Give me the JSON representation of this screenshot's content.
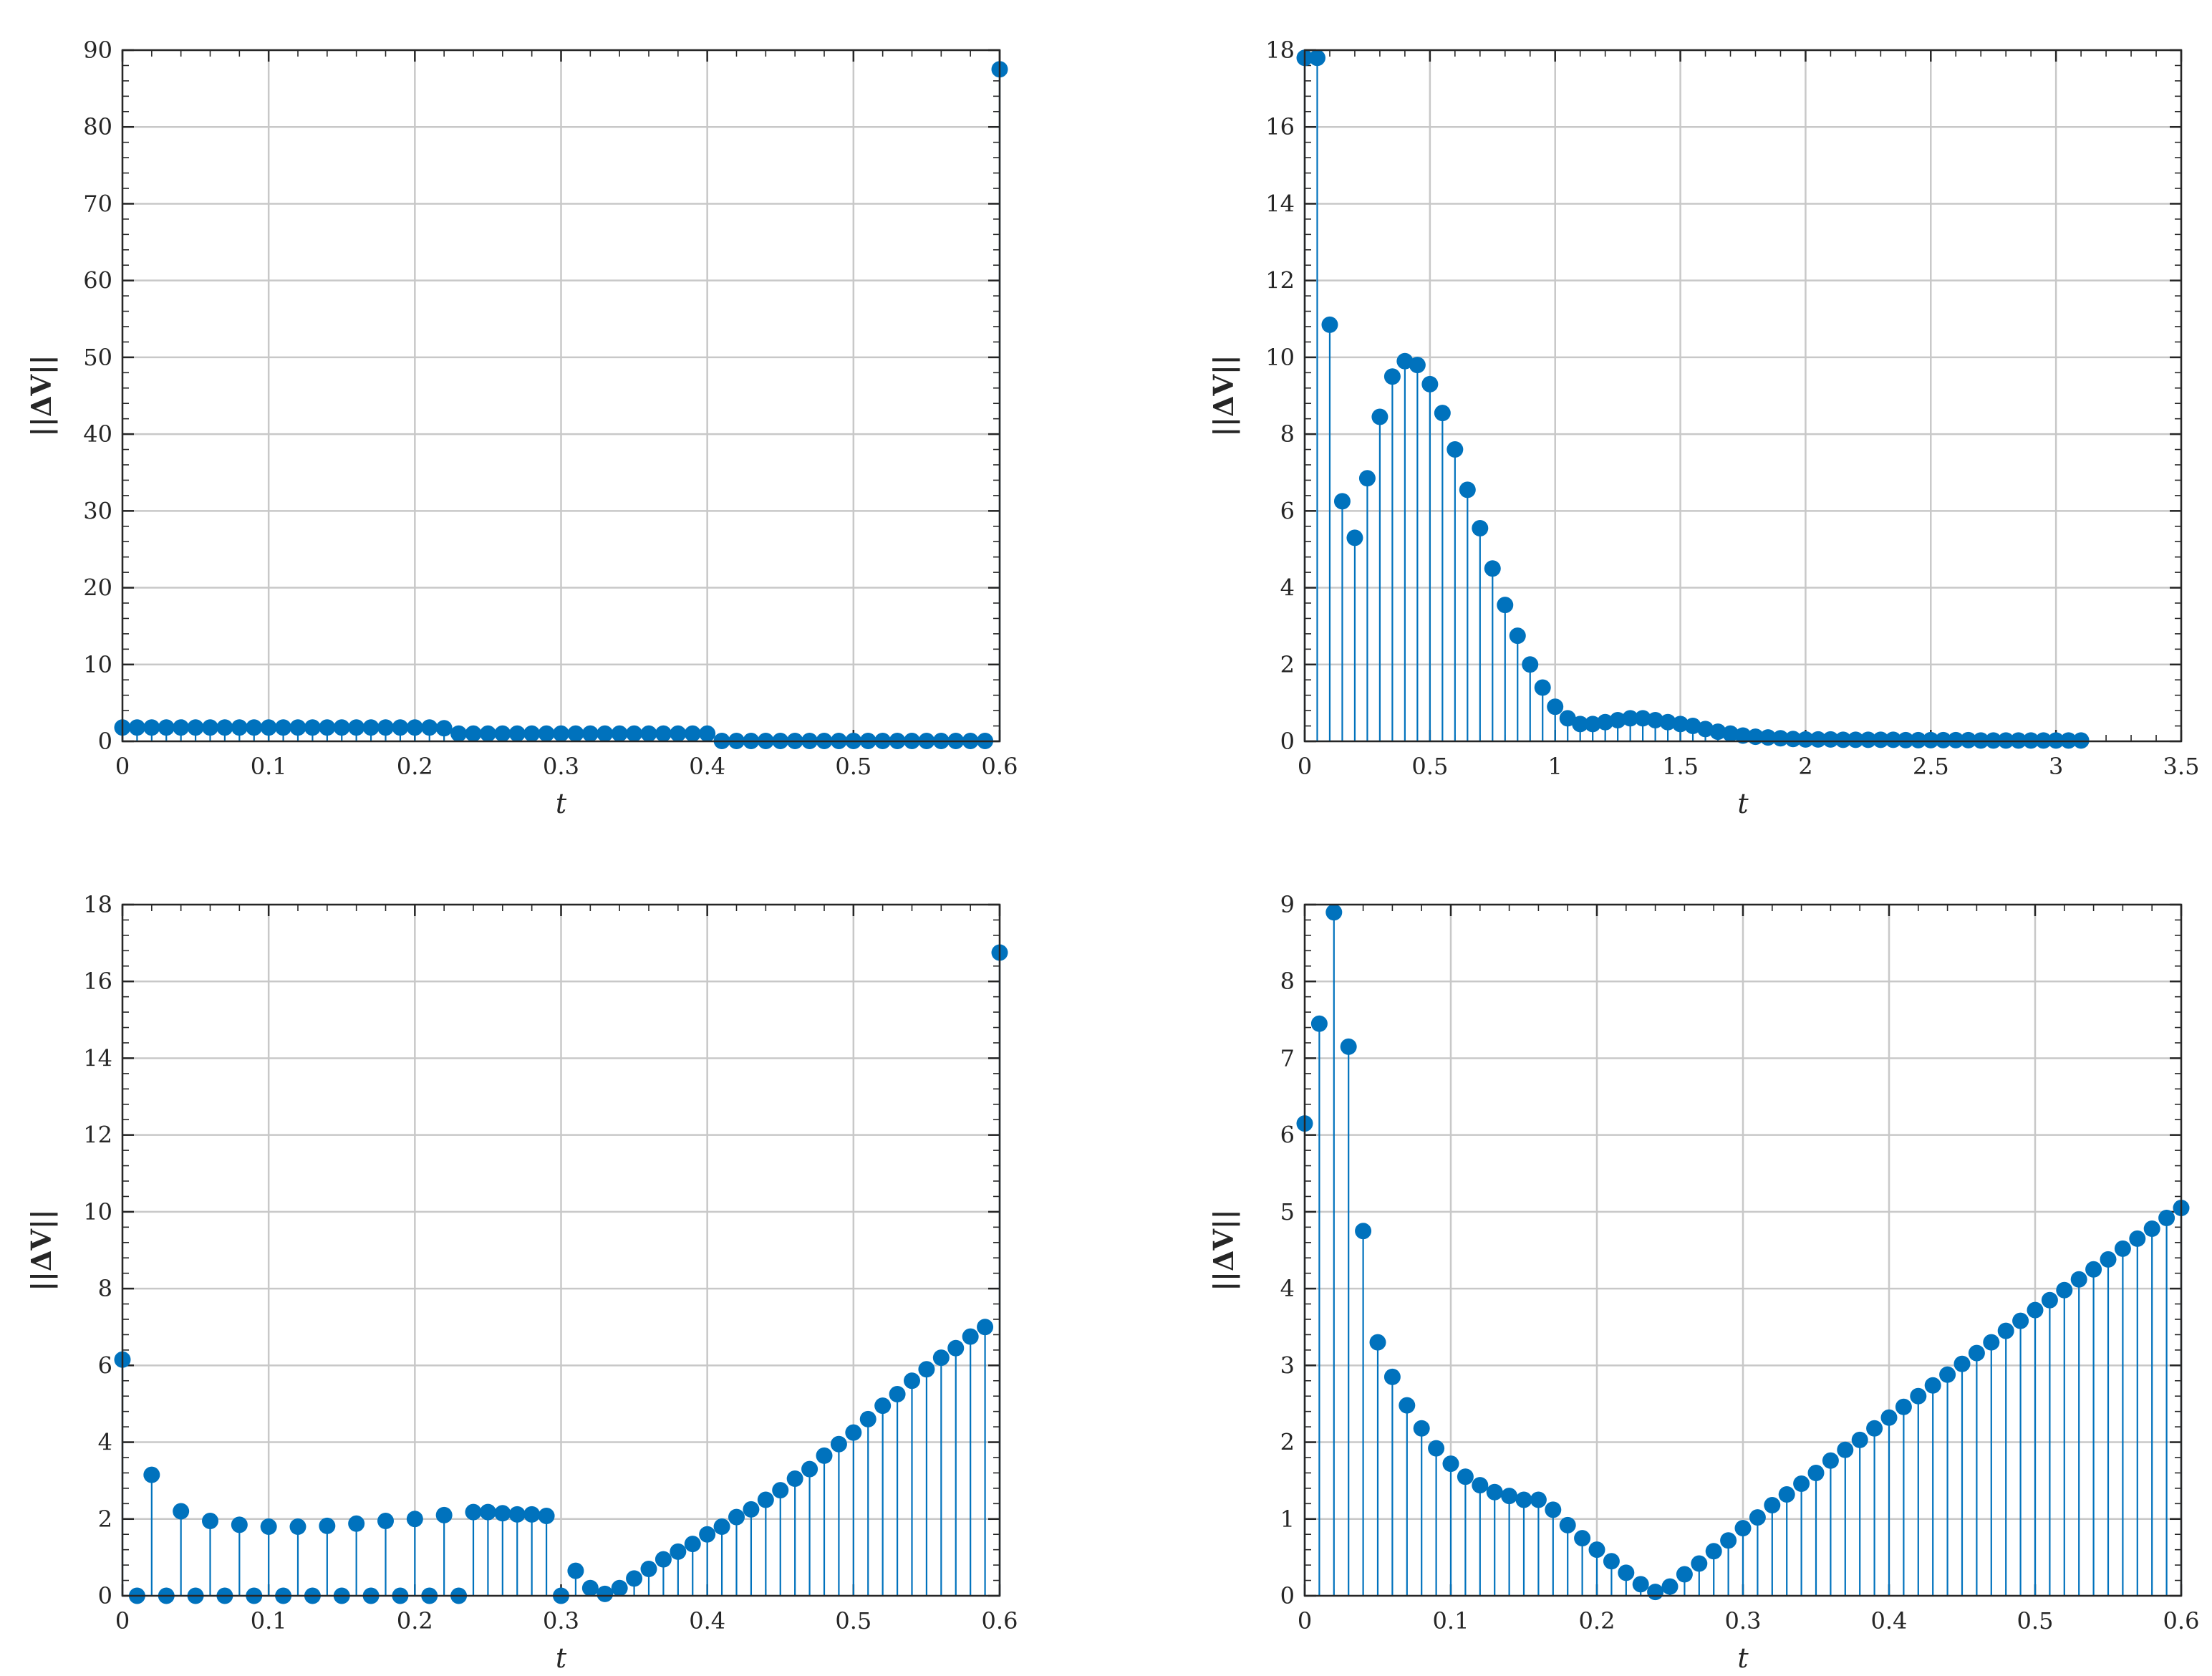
{
  "colors": {
    "series": "#0072BD",
    "grid": "#c8c8c8",
    "axis": "#262626"
  },
  "chart_data": [
    {
      "type": "stem",
      "position": "top-left",
      "xlabel": "t",
      "ylabel": "||ΔV||",
      "xlim": [
        0,
        0.6
      ],
      "ylim": [
        0,
        90
      ],
      "xticks": [
        0,
        0.1,
        0.2,
        0.3,
        0.4,
        0.5,
        0.6
      ],
      "xtick_labels": [
        "0",
        "0.1",
        "0.2",
        "0.3",
        "0.4",
        "0.5",
        "0.6"
      ],
      "yticks": [
        0,
        10,
        20,
        30,
        40,
        50,
        60,
        70,
        80,
        90
      ],
      "ytick_labels": [
        "0",
        "10",
        "20",
        "30",
        "40",
        "50",
        "60",
        "70",
        "80",
        "90"
      ],
      "grid": true,
      "x": [
        0,
        0.01,
        0.02,
        0.03,
        0.04,
        0.05,
        0.06,
        0.07,
        0.08,
        0.09,
        0.1,
        0.11,
        0.12,
        0.13,
        0.14,
        0.15,
        0.16,
        0.17,
        0.18,
        0.19,
        0.2,
        0.21,
        0.22,
        0.23,
        0.24,
        0.25,
        0.26,
        0.27,
        0.28,
        0.29,
        0.3,
        0.31,
        0.32,
        0.33,
        0.34,
        0.35,
        0.36,
        0.37,
        0.38,
        0.39,
        0.4,
        0.41,
        0.42,
        0.43,
        0.44,
        0.45,
        0.46,
        0.47,
        0.48,
        0.49,
        0.5,
        0.51,
        0.52,
        0.53,
        0.54,
        0.55,
        0.56,
        0.57,
        0.58,
        0.59,
        0.6
      ],
      "y": [
        1.8,
        1.8,
        1.8,
        1.8,
        1.8,
        1.8,
        1.8,
        1.8,
        1.8,
        1.8,
        1.8,
        1.8,
        1.8,
        1.8,
        1.8,
        1.8,
        1.8,
        1.8,
        1.8,
        1.8,
        1.8,
        1.8,
        1.7,
        1.0,
        1.0,
        1.0,
        1.0,
        1.0,
        1.0,
        1.0,
        1.0,
        1.0,
        1.0,
        1.0,
        1.0,
        1.0,
        1.0,
        1.0,
        1.0,
        1.0,
        1.0,
        0.05,
        0.05,
        0.05,
        0.05,
        0.05,
        0.05,
        0.05,
        0.05,
        0.05,
        0.05,
        0.05,
        0.05,
        0.05,
        0.05,
        0.05,
        0.05,
        0.05,
        0.05,
        0.05,
        87.5
      ]
    },
    {
      "type": "stem",
      "position": "top-right",
      "xlabel": "t",
      "ylabel": "||ΔV||",
      "xlim": [
        0,
        3.5
      ],
      "ylim": [
        0,
        18
      ],
      "xticks": [
        0,
        0.5,
        1,
        1.5,
        2,
        2.5,
        3,
        3.5
      ],
      "xtick_labels": [
        "0",
        "0.5",
        "1",
        "1.5",
        "2",
        "2.5",
        "3",
        "3.5"
      ],
      "yticks": [
        0,
        2,
        4,
        6,
        8,
        10,
        12,
        14,
        16,
        18
      ],
      "ytick_labels": [
        "0",
        "2",
        "4",
        "6",
        "8",
        "10",
        "12",
        "14",
        "16",
        "18"
      ],
      "grid": true,
      "x": [
        0,
        0.05,
        0.1,
        0.15,
        0.2,
        0.25,
        0.3,
        0.35,
        0.4,
        0.45,
        0.5,
        0.55,
        0.6,
        0.65,
        0.7,
        0.75,
        0.8,
        0.85,
        0.9,
        0.95,
        1.0,
        1.05,
        1.1,
        1.15,
        1.2,
        1.25,
        1.3,
        1.35,
        1.4,
        1.45,
        1.5,
        1.55,
        1.6,
        1.65,
        1.7,
        1.75,
        1.8,
        1.85,
        1.9,
        1.95,
        2.0,
        2.05,
        2.1,
        2.15,
        2.2,
        2.25,
        2.3,
        2.35,
        2.4,
        2.45,
        2.5,
        2.55,
        2.6,
        2.65,
        2.7,
        2.75,
        2.8,
        2.85,
        2.9,
        2.95,
        3.0,
        3.05,
        3.1
      ],
      "y": [
        17.8,
        17.8,
        10.85,
        6.25,
        5.3,
        6.85,
        8.45,
        9.5,
        9.9,
        9.8,
        9.3,
        8.55,
        7.6,
        6.55,
        5.55,
        4.5,
        3.55,
        2.75,
        2.0,
        1.4,
        0.9,
        0.6,
        0.45,
        0.45,
        0.5,
        0.55,
        0.6,
        0.6,
        0.55,
        0.5,
        0.45,
        0.4,
        0.32,
        0.25,
        0.2,
        0.15,
        0.12,
        0.1,
        0.08,
        0.06,
        0.05,
        0.05,
        0.05,
        0.04,
        0.04,
        0.04,
        0.04,
        0.04,
        0.03,
        0.03,
        0.03,
        0.03,
        0.03,
        0.03,
        0.02,
        0.02,
        0.02,
        0.02,
        0.02,
        0.02,
        0.02,
        0.02,
        0.02
      ]
    },
    {
      "type": "stem",
      "position": "bottom-left",
      "xlabel": "t",
      "ylabel": "||ΔV||",
      "xlim": [
        0,
        0.6
      ],
      "ylim": [
        0,
        18
      ],
      "xticks": [
        0,
        0.1,
        0.2,
        0.3,
        0.4,
        0.5,
        0.6
      ],
      "xtick_labels": [
        "0",
        "0.1",
        "0.2",
        "0.3",
        "0.4",
        "0.5",
        "0.6"
      ],
      "yticks": [
        0,
        2,
        4,
        6,
        8,
        10,
        12,
        14,
        16,
        18
      ],
      "ytick_labels": [
        "0",
        "2",
        "4",
        "6",
        "8",
        "10",
        "12",
        "14",
        "16",
        "18"
      ],
      "grid": true,
      "x": [
        0,
        0.01,
        0.02,
        0.03,
        0.04,
        0.05,
        0.06,
        0.07,
        0.08,
        0.09,
        0.1,
        0.11,
        0.12,
        0.13,
        0.14,
        0.15,
        0.16,
        0.17,
        0.18,
        0.19,
        0.2,
        0.21,
        0.22,
        0.23,
        0.24,
        0.25,
        0.26,
        0.27,
        0.28,
        0.29,
        0.3,
        0.31,
        0.32,
        0.33,
        0.34,
        0.35,
        0.36,
        0.37,
        0.38,
        0.39,
        0.4,
        0.41,
        0.42,
        0.43,
        0.44,
        0.45,
        0.46,
        0.47,
        0.48,
        0.49,
        0.5,
        0.51,
        0.52,
        0.53,
        0.54,
        0.55,
        0.56,
        0.57,
        0.58,
        0.59,
        0.6
      ],
      "y": [
        6.15,
        0,
        3.15,
        0,
        2.2,
        0,
        1.95,
        0,
        1.85,
        0,
        1.8,
        0,
        1.8,
        0,
        1.82,
        0,
        1.88,
        0,
        1.95,
        0,
        2.0,
        0,
        2.1,
        0,
        2.18,
        2.18,
        2.15,
        2.12,
        2.12,
        2.08,
        0,
        0.65,
        0.2,
        0.05,
        0.2,
        0.45,
        0.7,
        0.95,
        1.15,
        1.35,
        1.6,
        1.8,
        2.05,
        2.25,
        2.5,
        2.75,
        3.05,
        3.3,
        3.65,
        3.95,
        4.25,
        4.6,
        4.95,
        5.25,
        5.6,
        5.9,
        6.2,
        6.45,
        6.75,
        7.0,
        16.75
      ]
    },
    {
      "type": "stem",
      "position": "bottom-right",
      "xlabel": "t",
      "ylabel": "||ΔV||",
      "xlim": [
        0,
        0.6
      ],
      "ylim": [
        0,
        9
      ],
      "xticks": [
        0,
        0.1,
        0.2,
        0.3,
        0.4,
        0.5,
        0.6
      ],
      "xtick_labels": [
        "0",
        "0.1",
        "0.2",
        "0.3",
        "0.4",
        "0.5",
        "0.6"
      ],
      "yticks": [
        0,
        1,
        2,
        3,
        4,
        5,
        6,
        7,
        8,
        9
      ],
      "ytick_labels": [
        "0",
        "1",
        "2",
        "3",
        "4",
        "5",
        "6",
        "7",
        "8",
        "9"
      ],
      "grid": true,
      "x": [
        0,
        0.01,
        0.02,
        0.03,
        0.04,
        0.05,
        0.06,
        0.07,
        0.08,
        0.09,
        0.1,
        0.11,
        0.12,
        0.13,
        0.14,
        0.15,
        0.16,
        0.17,
        0.18,
        0.19,
        0.2,
        0.21,
        0.22,
        0.23,
        0.24,
        0.25,
        0.26,
        0.27,
        0.28,
        0.29,
        0.3,
        0.31,
        0.32,
        0.33,
        0.34,
        0.35,
        0.36,
        0.37,
        0.38,
        0.39,
        0.4,
        0.41,
        0.42,
        0.43,
        0.44,
        0.45,
        0.46,
        0.47,
        0.48,
        0.49,
        0.5,
        0.51,
        0.52,
        0.53,
        0.54,
        0.55,
        0.56,
        0.57,
        0.58,
        0.59,
        0.6
      ],
      "y": [
        6.15,
        7.45,
        8.9,
        7.15,
        4.75,
        3.3,
        2.85,
        2.48,
        2.18,
        1.92,
        1.72,
        1.55,
        1.44,
        1.35,
        1.3,
        1.25,
        1.25,
        1.12,
        0.92,
        0.75,
        0.6,
        0.45,
        0.3,
        0.15,
        0.05,
        0.12,
        0.28,
        0.42,
        0.58,
        0.72,
        0.88,
        1.02,
        1.18,
        1.32,
        1.46,
        1.6,
        1.76,
        1.9,
        2.03,
        2.18,
        2.32,
        2.46,
        2.6,
        2.74,
        2.88,
        3.02,
        3.16,
        3.3,
        3.45,
        3.58,
        3.72,
        3.85,
        3.98,
        4.12,
        4.25,
        4.38,
        4.52,
        4.65,
        4.78,
        4.92,
        5.05
      ]
    }
  ]
}
